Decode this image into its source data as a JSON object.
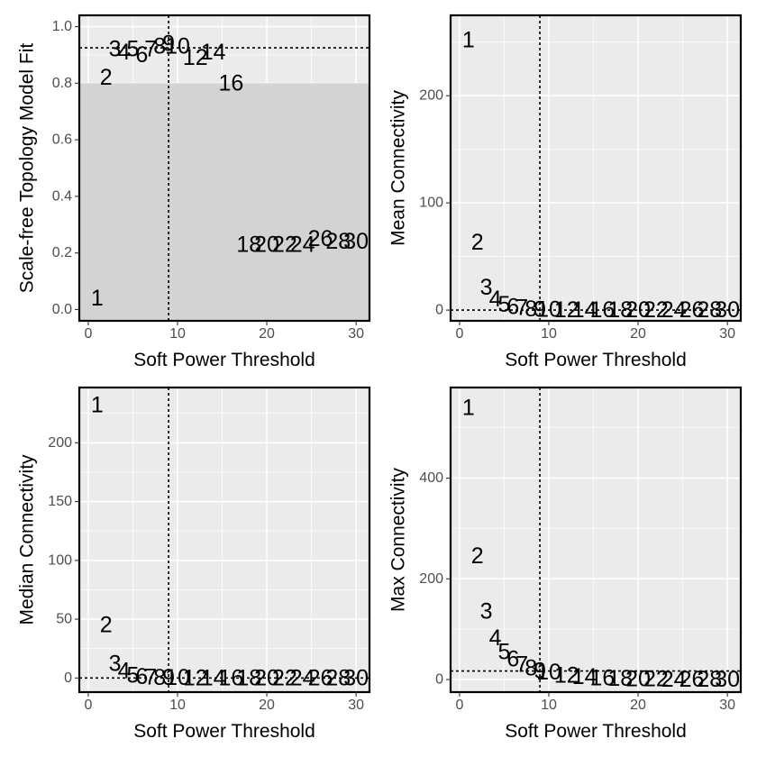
{
  "colors": {
    "panel_bg": "#ebebeb",
    "grid": "#ffffff",
    "shade": "#d3d3d3",
    "border": "#000000",
    "tick_text": "#4d4d4d",
    "label_text": "#000000"
  },
  "chart_data": [
    {
      "type": "scatter",
      "marker": "text-labels",
      "title": "",
      "xlabel": "Soft Power Threshold",
      "ylabel": "Scale-free Topology Model Fit",
      "xlim": [
        -1,
        31.5
      ],
      "ylim": [
        -0.04,
        1.04
      ],
      "xticks": [
        0,
        10,
        20,
        30
      ],
      "xtick_labels": [
        "0",
        "10",
        "20",
        "30"
      ],
      "yticks": [
        0,
        0.2,
        0.4,
        0.6,
        0.8,
        1.0
      ],
      "ytick_labels": [
        "0.0",
        "0.2",
        "0.4",
        "0.6",
        "0.8",
        "1.0"
      ],
      "shaded_region": {
        "ymin": -0.04,
        "ymax": 0.8
      },
      "hline": 0.925,
      "vline": 9,
      "points": [
        {
          "x": 1,
          "y": 0.04,
          "label": "1"
        },
        {
          "x": 2,
          "y": 0.82,
          "label": "2"
        },
        {
          "x": 3,
          "y": 0.92,
          "label": "3"
        },
        {
          "x": 4,
          "y": 0.91,
          "label": "4"
        },
        {
          "x": 5,
          "y": 0.92,
          "label": "5"
        },
        {
          "x": 6,
          "y": 0.9,
          "label": "6"
        },
        {
          "x": 7,
          "y": 0.92,
          "label": "7"
        },
        {
          "x": 8,
          "y": 0.93,
          "label": "8"
        },
        {
          "x": 9,
          "y": 0.94,
          "label": "9"
        },
        {
          "x": 10,
          "y": 0.93,
          "label": "10"
        },
        {
          "x": 12,
          "y": 0.89,
          "label": "12"
        },
        {
          "x": 14,
          "y": 0.91,
          "label": "14"
        },
        {
          "x": 16,
          "y": 0.8,
          "label": "16"
        },
        {
          "x": 18,
          "y": 0.23,
          "label": "18"
        },
        {
          "x": 20,
          "y": 0.23,
          "label": "20"
        },
        {
          "x": 22,
          "y": 0.23,
          "label": "22"
        },
        {
          "x": 24,
          "y": 0.23,
          "label": "24"
        },
        {
          "x": 26,
          "y": 0.25,
          "label": "26"
        },
        {
          "x": 28,
          "y": 0.24,
          "label": "28"
        },
        {
          "x": 30,
          "y": 0.24,
          "label": "30"
        }
      ]
    },
    {
      "type": "scatter",
      "marker": "text-labels",
      "title": "",
      "xlabel": "Soft Power Threshold",
      "ylabel": "Mean Connectivity",
      "xlim": [
        -1,
        31.5
      ],
      "ylim": [
        -10,
        275
      ],
      "xticks": [
        0,
        10,
        20,
        30
      ],
      "xtick_labels": [
        "0",
        "10",
        "20",
        "30"
      ],
      "yticks": [
        0,
        100,
        200
      ],
      "ytick_labels": [
        "0",
        "100",
        "200"
      ],
      "hline": 0,
      "vline": 9,
      "points": [
        {
          "x": 1,
          "y": 252,
          "label": "1"
        },
        {
          "x": 2,
          "y": 63,
          "label": "2"
        },
        {
          "x": 3,
          "y": 21,
          "label": "3"
        },
        {
          "x": 4,
          "y": 10,
          "label": "4"
        },
        {
          "x": 5,
          "y": 5,
          "label": "5"
        },
        {
          "x": 6,
          "y": 3,
          "label": "6"
        },
        {
          "x": 7,
          "y": 2,
          "label": "7"
        },
        {
          "x": 8,
          "y": 1,
          "label": "8"
        },
        {
          "x": 9,
          "y": 0.5,
          "label": "9"
        },
        {
          "x": 10,
          "y": 0.3,
          "label": "10"
        },
        {
          "x": 12,
          "y": 0.1,
          "label": "12"
        },
        {
          "x": 14,
          "y": 0.05,
          "label": "14"
        },
        {
          "x": 16,
          "y": 0.02,
          "label": "16"
        },
        {
          "x": 18,
          "y": 0.01,
          "label": "18"
        },
        {
          "x": 20,
          "y": 0.01,
          "label": "20"
        },
        {
          "x": 22,
          "y": 0,
          "label": "22"
        },
        {
          "x": 24,
          "y": 0,
          "label": "24"
        },
        {
          "x": 26,
          "y": 0,
          "label": "26"
        },
        {
          "x": 28,
          "y": 0,
          "label": "28"
        },
        {
          "x": 30,
          "y": 0,
          "label": "30"
        }
      ]
    },
    {
      "type": "scatter",
      "marker": "text-labels",
      "title": "",
      "xlabel": "Soft Power Threshold",
      "ylabel": "Median Connectivity",
      "xlim": [
        -1,
        31.5
      ],
      "ylim": [
        -12,
        247
      ],
      "xticks": [
        0,
        10,
        20,
        30
      ],
      "xtick_labels": [
        "0",
        "10",
        "20",
        "30"
      ],
      "yticks": [
        0,
        50,
        100,
        150,
        200
      ],
      "ytick_labels": [
        "0",
        "50",
        "100",
        "150",
        "200"
      ],
      "hline": 0,
      "vline": 9,
      "points": [
        {
          "x": 1,
          "y": 232,
          "label": "1"
        },
        {
          "x": 2,
          "y": 45,
          "label": "2"
        },
        {
          "x": 3,
          "y": 12,
          "label": "3"
        },
        {
          "x": 4,
          "y": 6,
          "label": "4"
        },
        {
          "x": 5,
          "y": 2,
          "label": "5"
        },
        {
          "x": 6,
          "y": 1,
          "label": "6"
        },
        {
          "x": 7,
          "y": 0.5,
          "label": "7"
        },
        {
          "x": 8,
          "y": 0.3,
          "label": "8"
        },
        {
          "x": 9,
          "y": 0.2,
          "label": "9"
        },
        {
          "x": 10,
          "y": 0.1,
          "label": "10"
        },
        {
          "x": 12,
          "y": 0,
          "label": "12"
        },
        {
          "x": 14,
          "y": 0,
          "label": "14"
        },
        {
          "x": 16,
          "y": 0,
          "label": "16"
        },
        {
          "x": 18,
          "y": 0,
          "label": "18"
        },
        {
          "x": 20,
          "y": 0,
          "label": "20"
        },
        {
          "x": 22,
          "y": 0,
          "label": "22"
        },
        {
          "x": 24,
          "y": 0,
          "label": "24"
        },
        {
          "x": 26,
          "y": 0,
          "label": "26"
        },
        {
          "x": 28,
          "y": 0,
          "label": "28"
        },
        {
          "x": 30,
          "y": 0,
          "label": "30"
        }
      ]
    },
    {
      "type": "scatter",
      "marker": "text-labels",
      "title": "",
      "xlabel": "Soft Power Threshold",
      "ylabel": "Max Connectivity",
      "xlim": [
        -1,
        31.5
      ],
      "ylim": [
        -25,
        580
      ],
      "xticks": [
        0,
        10,
        20,
        30
      ],
      "xtick_labels": [
        "0",
        "10",
        "20",
        "30"
      ],
      "yticks": [
        0,
        200,
        400
      ],
      "ytick_labels": [
        "0",
        "200",
        "400"
      ],
      "hline": 17,
      "vline": 9,
      "points": [
        {
          "x": 1,
          "y": 540,
          "label": "1"
        },
        {
          "x": 2,
          "y": 245,
          "label": "2"
        },
        {
          "x": 3,
          "y": 135,
          "label": "3"
        },
        {
          "x": 4,
          "y": 82,
          "label": "4"
        },
        {
          "x": 5,
          "y": 55,
          "label": "5"
        },
        {
          "x": 6,
          "y": 40,
          "label": "6"
        },
        {
          "x": 7,
          "y": 30,
          "label": "7"
        },
        {
          "x": 8,
          "y": 22,
          "label": "8"
        },
        {
          "x": 9,
          "y": 17,
          "label": "9"
        },
        {
          "x": 10,
          "y": 14,
          "label": "10"
        },
        {
          "x": 12,
          "y": 8,
          "label": "12"
        },
        {
          "x": 14,
          "y": 5,
          "label": "14"
        },
        {
          "x": 16,
          "y": 3,
          "label": "16"
        },
        {
          "x": 18,
          "y": 2,
          "label": "18"
        },
        {
          "x": 20,
          "y": 1,
          "label": "20"
        },
        {
          "x": 22,
          "y": 1,
          "label": "22"
        },
        {
          "x": 24,
          "y": 0.5,
          "label": "24"
        },
        {
          "x": 26,
          "y": 0.5,
          "label": "26"
        },
        {
          "x": 28,
          "y": 0.3,
          "label": "28"
        },
        {
          "x": 30,
          "y": 0.2,
          "label": "30"
        }
      ]
    }
  ]
}
